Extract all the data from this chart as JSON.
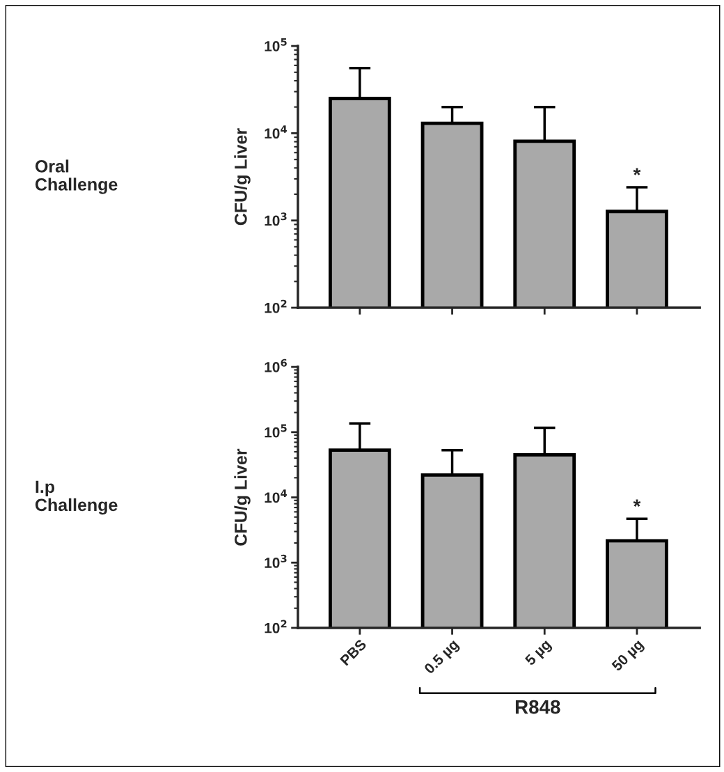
{
  "chart_data": [
    {
      "type": "bar",
      "ylabel": "CFU/g Liver",
      "categories": [
        "PBS",
        "0.5 µg",
        "5 µg",
        "50 µg"
      ],
      "values": [
        25000,
        13000,
        8100,
        1270
      ],
      "errors": [
        [
          25000,
          56000
        ],
        [
          13000,
          20000
        ],
        [
          8100,
          20000
        ],
        [
          1270,
          2400
        ]
      ],
      "color": "#a9a9a9",
      "log": true,
      "ylim": [
        100,
        100000
      ],
      "yticks": [
        {
          "value": 100,
          "label": "10$^{2}$"
        },
        {
          "value": 1000,
          "label": "10$^{3}$"
        },
        {
          "value": 10000,
          "label": "10$^{4}$"
        },
        {
          "value": 100000,
          "label": "10$^{5}$"
        }
      ],
      "tick_labels": "y",
      "grid": false,
      "legend": false,
      "annotations": [
        "Oral\nChallenge",
        {
          "text": "*",
          "x": "50 µg",
          "y": 2400
        }
      ]
    },
    {
      "type": "bar",
      "ylabel": "CFU/g Liver",
      "categories": [
        "PBS",
        "0.5 µg",
        "5 µg",
        "50 µg"
      ],
      "values": [
        53000,
        22000,
        45000,
        2160
      ],
      "errors": [
        [
          53000,
          136000
        ],
        [
          22000,
          53000
        ],
        [
          45000,
          117000
        ],
        [
          2160,
          4700
        ]
      ],
      "color": "#a9a9a9",
      "log": true,
      "ylim": [
        100,
        1000000
      ],
      "yticks": [
        {
          "value": 100,
          "label": "10$^{2}$"
        },
        {
          "value": 1000,
          "label": "10$^{3}$"
        },
        {
          "value": 10000,
          "label": "10$^{4}$"
        },
        {
          "value": 100000,
          "label": "10$^{5}$"
        },
        {
          "value": 1000000,
          "label": "10$^{6}$"
        }
      ],
      "grid": false,
      "legend": false,
      "annotations": [
        "I.p\nChallenge",
        {
          "text": "*",
          "x": "50 µg",
          "y": 4700
        },
        "R848"
      ]
    }
  ]
}
